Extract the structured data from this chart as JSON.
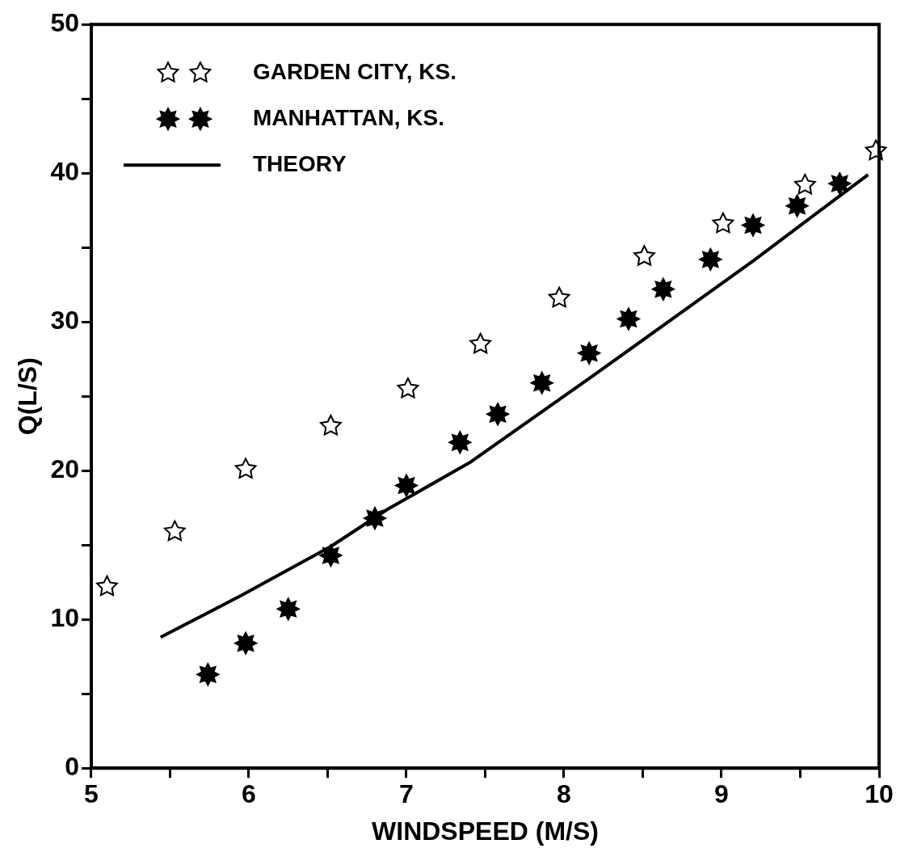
{
  "chart_data": {
    "type": "scatter",
    "xlabel": "WINDSPEED (M/S)",
    "ylabel": "Q(L/S)",
    "xlim": [
      5,
      10
    ],
    "xticks": [
      5,
      {
        "value": 5.5,
        "label": null
      },
      6,
      {
        "value": 6.5,
        "label": null
      },
      7,
      {
        "value": 7.5,
        "label": null
      },
      8,
      {
        "value": 8.5,
        "label": null
      },
      9,
      {
        "value": 9.5,
        "label": null
      },
      10
    ],
    "ylim": [
      0,
      50
    ],
    "yticks": [
      0,
      {
        "value": 5,
        "label": null
      },
      10,
      {
        "value": 15,
        "label": null
      },
      20,
      {
        "value": 25,
        "label": null
      },
      30,
      {
        "value": 35,
        "label": null
      },
      40,
      {
        "value": 45,
        "label": null
      },
      50
    ],
    "grid": false,
    "legend": "top left",
    "series": [
      {
        "name": "GARDEN CITY, KS.",
        "type": "scatter",
        "marker": "star",
        "color": "#000000",
        "x": [
          5.1,
          5.53,
          5.98,
          6.52,
          7.01,
          7.47,
          7.97,
          8.51,
          9.01,
          9.53,
          9.98
        ],
        "values": [
          12.2,
          15.9,
          20.1,
          23.0,
          25.5,
          28.5,
          31.6,
          34.4,
          36.6,
          39.2,
          41.5
        ]
      },
      {
        "name": "MANHATTAN, KS.",
        "type": "scatter",
        "marker": "star",
        "color": "#000000",
        "x": [
          5.74,
          5.98,
          6.25,
          6.52,
          6.8,
          7.0,
          7.34,
          7.58,
          7.86,
          8.16,
          8.41,
          8.63,
          8.93,
          9.2,
          9.48,
          9.75
        ],
        "values": [
          6.3,
          8.4,
          10.7,
          14.3,
          16.8,
          19.0,
          21.9,
          23.8,
          25.9,
          27.9,
          30.2,
          32.2,
          34.2,
          36.5,
          37.8,
          39.3
        ]
      },
      {
        "name": "THEORY",
        "type": "line",
        "marker": "none",
        "line_style": "solid",
        "color": "#000000",
        "x": [
          5.44,
          5.95,
          6.52,
          6.88,
          7.41,
          8.2,
          9.2,
          9.93
        ],
        "values": [
          8.8,
          11.6,
          14.9,
          17.4,
          20.6,
          26.5,
          34.1,
          39.9
        ]
      }
    ]
  }
}
